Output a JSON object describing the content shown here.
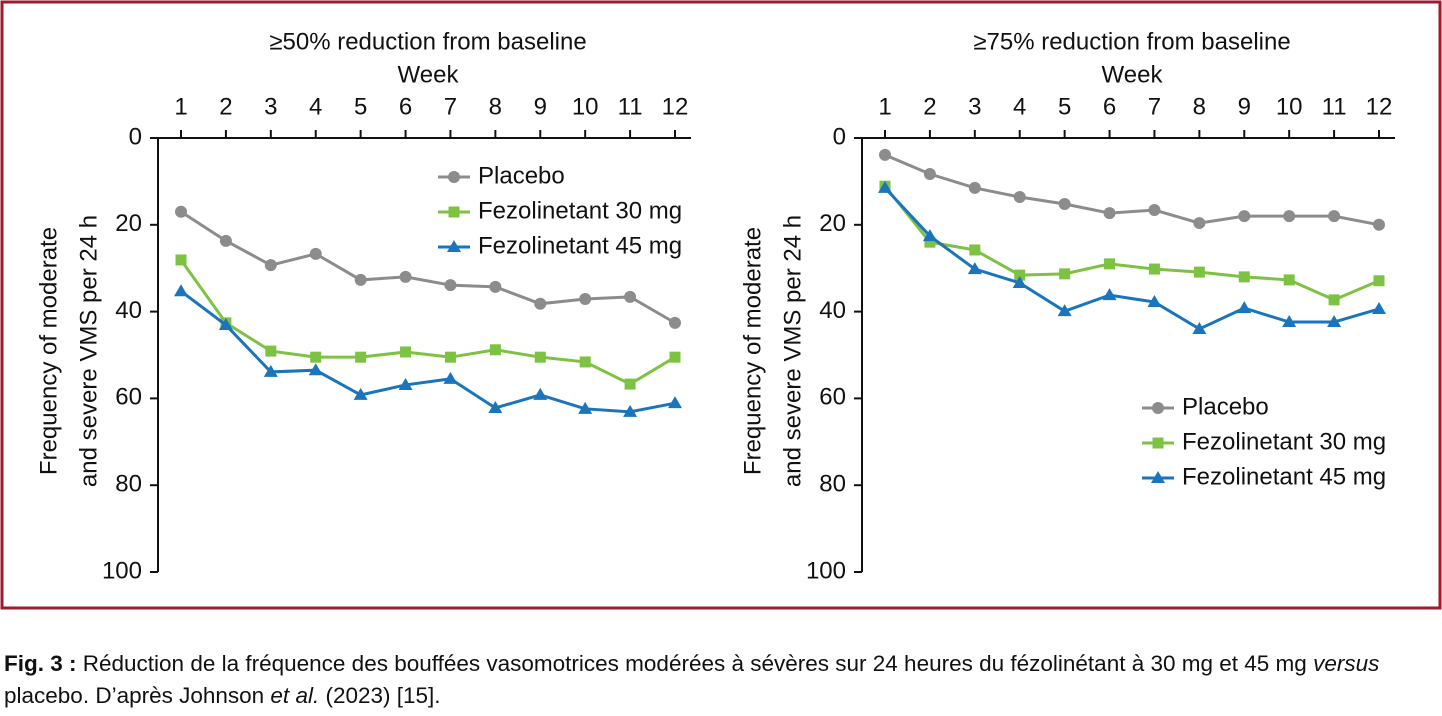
{
  "chart_data": [
    {
      "type": "line",
      "title": "≥50% reduction from baseline",
      "xlabel": "Week",
      "ylabel": [
        "Frequency of moderate",
        "and severe VMS per 24 h"
      ],
      "x": [
        1,
        2,
        3,
        4,
        5,
        6,
        7,
        8,
        9,
        10,
        11,
        12
      ],
      "xlim": [
        1,
        12
      ],
      "xticks": [
        1,
        2,
        3,
        4,
        5,
        6,
        7,
        8,
        9,
        10,
        11,
        12
      ],
      "ylim": [
        0,
        100
      ],
      "yticks": [
        0,
        20,
        40,
        60,
        80,
        100
      ],
      "y_reversed": true,
      "x_axis_top": true,
      "legend": "upper right",
      "series": [
        {
          "name": "Placebo",
          "color": "#8c8c8c",
          "marker": "circle",
          "values": [
            17,
            23.7,
            29.3,
            26.7,
            32.7,
            32,
            33.9,
            34.3,
            38.2,
            37.1,
            36.6,
            42.6
          ]
        },
        {
          "name": "Fezolinetant 30 mg",
          "color": "#7dc242",
          "marker": "square",
          "values": [
            28.1,
            42.6,
            49.1,
            50.5,
            50.5,
            49.3,
            50.5,
            48.8,
            50.5,
            51.6,
            56.7,
            50.5
          ]
        },
        {
          "name": "Fezolinetant 45 mg",
          "color": "#1a75bc",
          "marker": "triangle",
          "values": [
            35.3,
            43.1,
            53.9,
            53.5,
            59.2,
            56.9,
            55.5,
            62.2,
            59.2,
            62.4,
            63.1,
            61.1
          ]
        }
      ]
    },
    {
      "type": "line",
      "title": "≥75% reduction from baseline",
      "xlabel": "Week",
      "ylabel": [
        "Frequency of moderate",
        "and severe VMS per 24 h"
      ],
      "x": [
        1,
        2,
        3,
        4,
        5,
        6,
        7,
        8,
        9,
        10,
        11,
        12
      ],
      "xlim": [
        1,
        12
      ],
      "xticks": [
        1,
        2,
        3,
        4,
        5,
        6,
        7,
        8,
        9,
        10,
        11,
        12
      ],
      "ylim": [
        0,
        100
      ],
      "yticks": [
        0,
        20,
        40,
        60,
        80,
        100
      ],
      "y_reversed": true,
      "x_axis_top": true,
      "legend": "lower right",
      "series": [
        {
          "name": "Placebo",
          "color": "#8c8c8c",
          "marker": "circle",
          "values": [
            3.9,
            8.3,
            11.5,
            13.6,
            15.2,
            17.3,
            16.6,
            19.6,
            18,
            18,
            18,
            20
          ]
        },
        {
          "name": "Fezolinetant 30 mg",
          "color": "#7dc242",
          "marker": "square",
          "values": [
            11.1,
            24,
            25.8,
            31.6,
            31.3,
            29,
            30.2,
            30.9,
            32,
            32.7,
            37.3,
            32.9
          ]
        },
        {
          "name": "Fezolinetant 45 mg",
          "color": "#1a75bc",
          "marker": "triangle",
          "values": [
            11.5,
            22.6,
            30.2,
            33.4,
            39.9,
            36.2,
            37.8,
            44,
            39.2,
            42.4,
            42.4,
            39.4
          ]
        }
      ]
    }
  ],
  "caption": {
    "label": "Fig. 3 :",
    "parts": [
      " Réduction de la fréquence des bouffées vasomotrices modérées à sévères sur 24 heures du fézolinétant à 30 mg et 45 mg ",
      "versus",
      " placebo. D’après Johnson ",
      "et al.",
      " (2023) [15]."
    ]
  }
}
